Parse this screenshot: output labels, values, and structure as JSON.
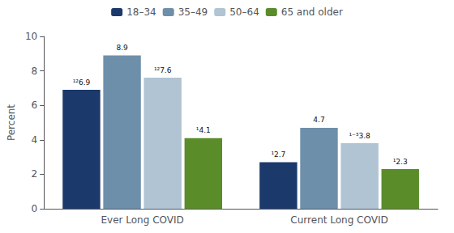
{
  "chart_data": {
    "type": "bar",
    "categories": [
      "Ever Long COVID",
      "Current Long COVID"
    ],
    "series": [
      {
        "name": "18–34",
        "color": "#1b3a6b",
        "values": [
          6.9,
          2.7
        ],
        "value_labels": [
          "¹²6.9",
          "¹2.7"
        ]
      },
      {
        "name": "35–49",
        "color": "#6e8faa",
        "values": [
          8.9,
          4.7
        ],
        "value_labels": [
          "8.9",
          "4.7"
        ]
      },
      {
        "name": "50–64",
        "color": "#b0c4d4",
        "values": [
          7.6,
          3.8
        ],
        "value_labels": [
          "¹²7.6",
          "¹⁻³3.8"
        ]
      },
      {
        "name": "65 and older",
        "color": "#5a8c2a",
        "values": [
          4.1,
          2.3
        ],
        "value_labels": [
          "¹4.1",
          "¹2.3"
        ]
      }
    ],
    "ylabel": "Percent",
    "ylim": [
      0,
      10
    ],
    "yticks": [
      0,
      2,
      4,
      6,
      8,
      10
    ],
    "legend": "top",
    "grid": false,
    "data_labels": true
  }
}
